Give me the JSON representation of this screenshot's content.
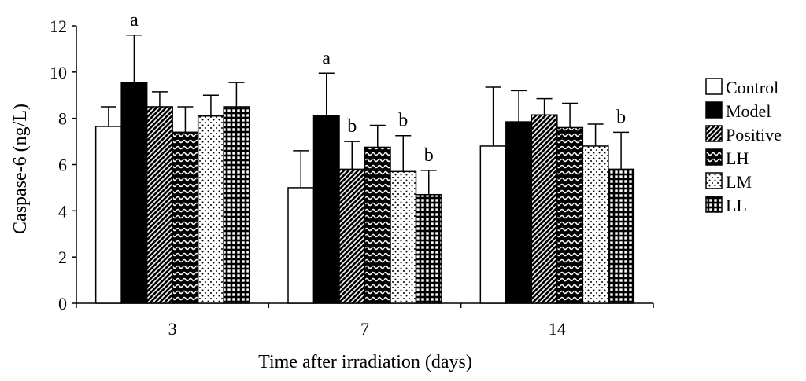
{
  "chart_data": {
    "type": "bar",
    "title": "",
    "xlabel": "Time after irradiation (days)",
    "ylabel": "Caspase-6 (ng/L)",
    "ylim": [
      0,
      12
    ],
    "yticks": [
      0,
      2,
      4,
      6,
      8,
      10,
      12
    ],
    "categories": [
      "3",
      "7",
      "14"
    ],
    "legend_position": "right",
    "grid": false,
    "series": [
      {
        "name": "Control",
        "pattern": "white",
        "values": [
          7.65,
          5.0,
          6.8
        ],
        "errors": [
          0.85,
          1.6,
          2.55
        ],
        "labels": [
          "",
          "",
          ""
        ]
      },
      {
        "name": "Model",
        "pattern": "black",
        "values": [
          9.55,
          8.1,
          7.85
        ],
        "errors": [
          2.05,
          1.85,
          1.35
        ],
        "labels": [
          "a",
          "a",
          ""
        ]
      },
      {
        "name": "Positive",
        "pattern": "diagonal",
        "values": [
          8.5,
          5.8,
          8.15
        ],
        "errors": [
          0.65,
          1.2,
          0.7
        ],
        "labels": [
          "",
          "b",
          ""
        ]
      },
      {
        "name": "LH",
        "pattern": "wave",
        "values": [
          7.4,
          6.75,
          7.6
        ],
        "errors": [
          1.1,
          0.95,
          1.05
        ],
        "labels": [
          "",
          "",
          ""
        ]
      },
      {
        "name": "LM",
        "pattern": "dots",
        "values": [
          8.1,
          5.7,
          6.8
        ],
        "errors": [
          0.9,
          1.55,
          0.95
        ],
        "labels": [
          "",
          "b",
          ""
        ]
      },
      {
        "name": "LL",
        "pattern": "grid",
        "values": [
          8.5,
          4.7,
          5.8
        ],
        "errors": [
          1.05,
          1.05,
          1.6
        ],
        "labels": [
          "",
          "b",
          "b"
        ]
      }
    ],
    "colors": {
      "stroke": "#000000",
      "fill_dark": "#000000",
      "fill_light": "#ffffff"
    }
  }
}
